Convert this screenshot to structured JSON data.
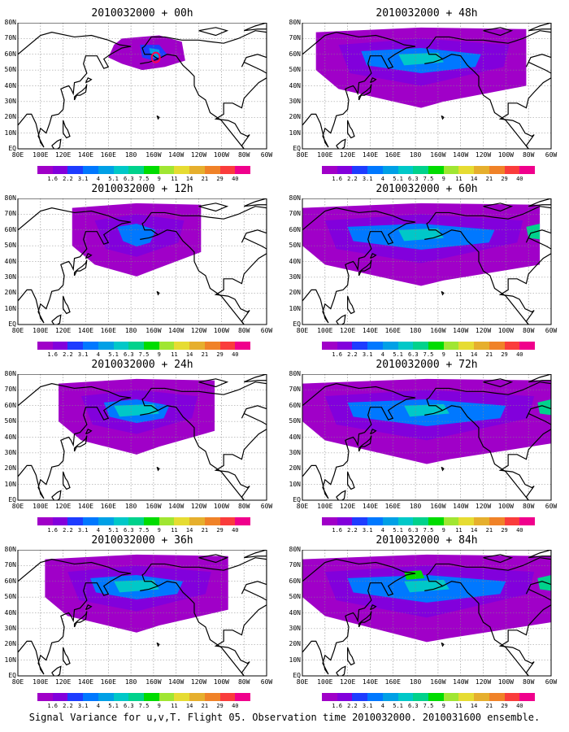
{
  "panels": [
    {
      "title": "2010032000 + 00h",
      "level": 0
    },
    {
      "title": "2010032000 + 12h",
      "level": 1
    },
    {
      "title": "2010032000 + 24h",
      "level": 2
    },
    {
      "title": "2010032000 + 36h",
      "level": 3
    },
    {
      "title": "2010032000 + 48h",
      "level": 4
    },
    {
      "title": "2010032000 + 60h",
      "level": 5
    },
    {
      "title": "2010032000 + 72h",
      "level": 6
    },
    {
      "title": "2010032000 + 84h",
      "level": 7
    }
  ],
  "lon_labels": [
    "80E",
    "100E",
    "120E",
    "140E",
    "160E",
    "180",
    "160W",
    "140W",
    "120W",
    "100W",
    "80W",
    "60W"
  ],
  "lat_labels": [
    "80N",
    "70N",
    "60N",
    "50N",
    "40N",
    "30N",
    "20N",
    "10N",
    "EQ"
  ],
  "colorbar": {
    "labels": [
      "1.6",
      "2.2",
      "3.1",
      "4",
      "5.1",
      "6.3",
      "7.5",
      "9",
      "11",
      "14",
      "21",
      "29",
      "40"
    ],
    "colors": [
      "#a000c8",
      "#8200dc",
      "#1e3cff",
      "#0078ff",
      "#00a0e6",
      "#00c8c8",
      "#00d28c",
      "#00dc00",
      "#a0e632",
      "#e6dc32",
      "#e6af2d",
      "#f08228",
      "#fa3c3c",
      "#f0008c"
    ]
  },
  "caption": "Signal Variance for u,v,T. Flight 05. Observation time 2010032000. 2010031600 ensemble."
}
